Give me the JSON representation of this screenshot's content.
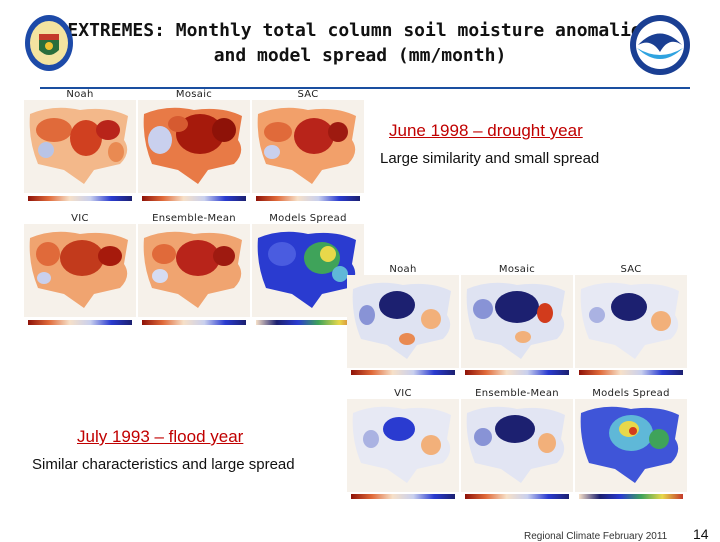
{
  "slide": {
    "title_line1": "EXTREMES:  Monthly total column soil moisture anomalies",
    "title_line2": "and model spread (mm/month)",
    "footer": "Regional Climate February 2011",
    "page_number": "14"
  },
  "section_1998": {
    "heading": "June 1998 – drought year",
    "subheading": "Large similarity and small spread",
    "panels": [
      "Noah",
      "Mosaic",
      "SAC",
      "VIC",
      "Ensemble-Mean",
      "Models Spread"
    ]
  },
  "section_1993": {
    "heading": "July 1993 – flood year",
    "subheading": "Similar characteristics and large spread",
    "panels": [
      "Noah",
      "Mosaic",
      "SAC",
      "VIC",
      "Ensemble-Mean",
      "Models Spread"
    ]
  },
  "colors": {
    "title_rule": "#1a4fa0",
    "heading_red": "#c00000",
    "drought_red": "#a61a0c",
    "flood_blue": "#1c2070",
    "spread_blue": "#2a3bd0"
  },
  "icons": [
    "doe-seal-icon",
    "noaa-logo-icon"
  ]
}
